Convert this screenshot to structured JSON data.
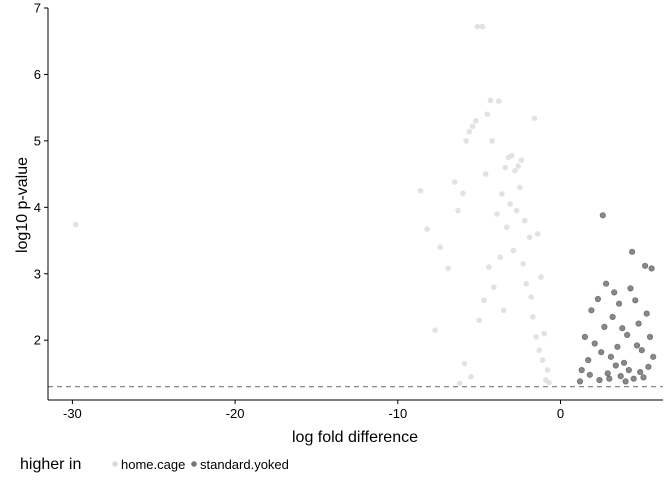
{
  "chart_data": {
    "type": "scatter",
    "title": "",
    "xlabel": "log fold difference",
    "ylabel": "log10 p-value",
    "xlim": [
      -31.5,
      6.3
    ],
    "ylim": [
      1.1,
      7.0
    ],
    "xticks": [
      -30,
      -20,
      -10,
      0
    ],
    "xtick_labels": [
      "-30",
      "-20",
      "-10",
      "0"
    ],
    "yticks": [
      2,
      3,
      4,
      5,
      6,
      7
    ],
    "ytick_labels": [
      "2",
      "3",
      "4",
      "5",
      "6",
      "7"
    ],
    "grid": false,
    "threshold_line": {
      "y": 1.3,
      "style": "dashed",
      "color": "#7a7a7a"
    },
    "legend": {
      "title": "higher in",
      "placement": "bottom-left",
      "entries": [
        {
          "label": "home.cage",
          "color": "#dddddd"
        },
        {
          "label": "standard.yoked",
          "color": "#555555"
        }
      ]
    },
    "series": [
      {
        "name": "home.cage",
        "color": "#dddddd",
        "points": [
          [
            -29.8,
            3.74
          ],
          [
            -8.6,
            4.25
          ],
          [
            -8.2,
            3.67
          ],
          [
            -7.7,
            2.15
          ],
          [
            -7.4,
            3.4
          ],
          [
            -6.9,
            3.08
          ],
          [
            -6.5,
            4.38
          ],
          [
            -6.3,
            3.95
          ],
          [
            -6.0,
            4.21
          ],
          [
            -5.8,
            5.0
          ],
          [
            -5.6,
            5.14
          ],
          [
            -5.4,
            5.22
          ],
          [
            -5.2,
            5.3
          ],
          [
            -5.1,
            6.72
          ],
          [
            -4.8,
            6.72
          ],
          [
            -4.6,
            4.5
          ],
          [
            -4.5,
            5.4
          ],
          [
            -4.3,
            5.61
          ],
          [
            -4.2,
            5.0
          ],
          [
            -3.8,
            5.6
          ],
          [
            -3.6,
            4.2
          ],
          [
            -3.4,
            4.6
          ],
          [
            -3.2,
            4.75
          ],
          [
            -3.0,
            4.78
          ],
          [
            -2.8,
            4.55
          ],
          [
            -2.6,
            4.62
          ],
          [
            -2.4,
            4.71
          ],
          [
            -2.2,
            3.8
          ],
          [
            -1.9,
            3.55
          ],
          [
            -1.6,
            5.34
          ],
          [
            -1.4,
            3.6
          ],
          [
            -1.2,
            2.95
          ],
          [
            -1.0,
            2.1
          ],
          [
            -0.8,
            1.55
          ],
          [
            -6.2,
            1.35
          ],
          [
            -5.9,
            1.65
          ],
          [
            -5.5,
            1.45
          ],
          [
            -5.0,
            2.3
          ],
          [
            -4.7,
            2.6
          ],
          [
            -4.4,
            3.1
          ],
          [
            -4.1,
            2.8
          ],
          [
            -3.9,
            3.9
          ],
          [
            -3.7,
            3.25
          ],
          [
            -3.5,
            2.45
          ],
          [
            -3.3,
            3.7
          ],
          [
            -3.1,
            4.05
          ],
          [
            -2.9,
            3.35
          ],
          [
            -2.7,
            3.95
          ],
          [
            -2.5,
            4.3
          ],
          [
            -2.3,
            3.15
          ],
          [
            -2.1,
            2.85
          ],
          [
            -1.8,
            2.65
          ],
          [
            -1.7,
            2.35
          ],
          [
            -1.5,
            2.05
          ],
          [
            -1.3,
            1.85
          ],
          [
            -1.1,
            1.7
          ],
          [
            -0.9,
            1.4
          ],
          [
            -0.7,
            1.36
          ]
        ]
      },
      {
        "name": "standard.yoked",
        "color": "#555555",
        "points": [
          [
            1.2,
            1.38
          ],
          [
            1.3,
            1.55
          ],
          [
            1.5,
            2.05
          ],
          [
            1.7,
            1.7
          ],
          [
            1.9,
            2.45
          ],
          [
            2.1,
            1.95
          ],
          [
            2.3,
            2.62
          ],
          [
            2.5,
            1.82
          ],
          [
            2.7,
            2.2
          ],
          [
            2.8,
            2.85
          ],
          [
            2.9,
            1.5
          ],
          [
            3.0,
            1.42
          ],
          [
            3.2,
            2.35
          ],
          [
            3.3,
            2.72
          ],
          [
            3.5,
            1.9
          ],
          [
            3.6,
            2.55
          ],
          [
            3.8,
            2.18
          ],
          [
            3.9,
            1.66
          ],
          [
            4.1,
            2.08
          ],
          [
            4.2,
            1.55
          ],
          [
            4.3,
            2.78
          ],
          [
            4.4,
            3.33
          ],
          [
            4.5,
            1.42
          ],
          [
            4.6,
            2.6
          ],
          [
            4.7,
            1.92
          ],
          [
            4.8,
            2.25
          ],
          [
            5.0,
            1.85
          ],
          [
            5.2,
            3.12
          ],
          [
            5.3,
            2.4
          ],
          [
            5.4,
            1.6
          ],
          [
            5.6,
            3.08
          ],
          [
            5.7,
            1.75
          ],
          [
            2.6,
            3.88
          ],
          [
            3.1,
            1.75
          ],
          [
            1.8,
            1.48
          ],
          [
            2.4,
            1.4
          ],
          [
            3.4,
            1.62
          ],
          [
            3.7,
            1.46
          ],
          [
            4.0,
            1.38
          ],
          [
            4.9,
            1.52
          ],
          [
            5.1,
            1.44
          ],
          [
            5.5,
            2.05
          ]
        ]
      }
    ]
  }
}
